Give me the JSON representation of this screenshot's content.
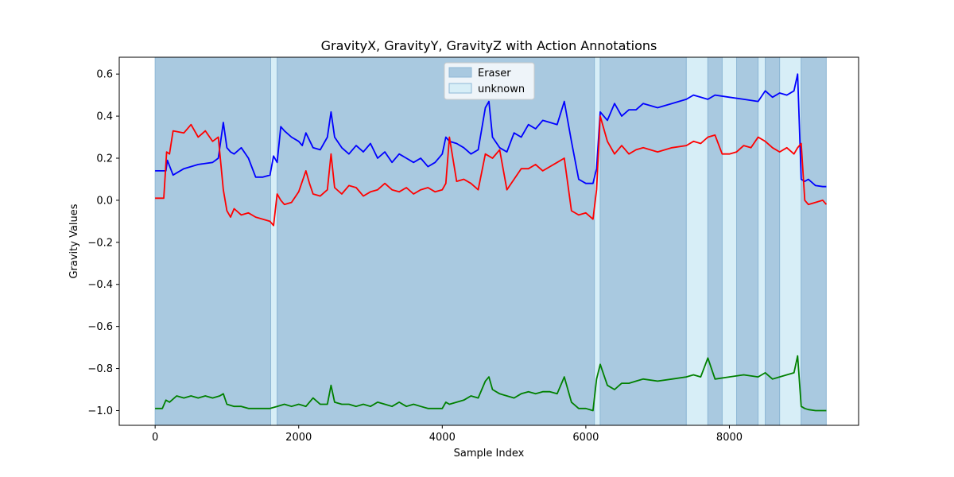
{
  "chart_data": {
    "type": "line",
    "title": "GravityX, GravityY, GravityZ with Action Annotations",
    "xlabel": "Sample Index",
    "ylabel": "Gravity Values",
    "xlim": [
      -500,
      9800
    ],
    "ylim": [
      -1.07,
      0.68
    ],
    "xticks": [
      0,
      2000,
      4000,
      6000,
      8000
    ],
    "yticks": [
      0.6,
      0.4,
      0.2,
      0.0,
      -0.2,
      -0.4,
      -0.6,
      -0.8,
      -1.0
    ],
    "xtick_labels": [
      "0",
      "2000",
      "4000",
      "6000",
      "8000"
    ],
    "ytick_labels": [
      "0.6",
      "0.4",
      "0.2",
      "0.0",
      "−0.2",
      "−0.4",
      "−0.6",
      "−0.8",
      "−1.0"
    ],
    "legend": {
      "placement": "upper center",
      "entries": [
        {
          "label": "Eraser",
          "color": "#a9c9e0"
        },
        {
          "label": "unknown",
          "color": "#d7eef7"
        }
      ]
    },
    "annotations": [
      {
        "label": "Eraser",
        "start": 0,
        "end": 1610
      },
      {
        "label": "unknown",
        "start": 1610,
        "end": 1700
      },
      {
        "label": "Eraser",
        "start": 1700,
        "end": 6120
      },
      {
        "label": "unknown",
        "start": 6120,
        "end": 6200
      },
      {
        "label": "Eraser",
        "start": 6200,
        "end": 7400
      },
      {
        "label": "unknown",
        "start": 7400,
        "end": 7700
      },
      {
        "label": "Eraser",
        "start": 7700,
        "end": 7900
      },
      {
        "label": "unknown",
        "start": 7900,
        "end": 8100
      },
      {
        "label": "Eraser",
        "start": 8100,
        "end": 8400
      },
      {
        "label": "unknown",
        "start": 8400,
        "end": 8500
      },
      {
        "label": "Eraser",
        "start": 8500,
        "end": 8700
      },
      {
        "label": "unknown",
        "start": 8700,
        "end": 9000
      },
      {
        "label": "Eraser",
        "start": 9000,
        "end": 9350
      }
    ],
    "series": [
      {
        "color": "#0000ff",
        "x": [
          0,
          150,
          170,
          250,
          400,
          600,
          800,
          880,
          950,
          1000,
          1050,
          1100,
          1200,
          1300,
          1400,
          1500,
          1600,
          1650,
          1700,
          1750,
          1800,
          1900,
          2000,
          2050,
          2100,
          2200,
          2300,
          2400,
          2450,
          2500,
          2600,
          2700,
          2800,
          2900,
          3000,
          3100,
          3200,
          3300,
          3400,
          3500,
          3600,
          3700,
          3800,
          3900,
          4000,
          4050,
          4100,
          4200,
          4300,
          4400,
          4500,
          4600,
          4650,
          4700,
          4800,
          4900,
          5000,
          5100,
          5200,
          5300,
          5400,
          5500,
          5600,
          5700,
          5800,
          5900,
          6000,
          6100,
          6150,
          6200,
          6300,
          6400,
          6500,
          6600,
          6700,
          6800,
          7000,
          7200,
          7400,
          7500,
          7600,
          7700,
          7800,
          8000,
          8200,
          8400,
          8500,
          8600,
          8700,
          8800,
          8900,
          8950,
          9000,
          9050,
          9100,
          9200,
          9300,
          9350
        ],
        "values": [
          0.14,
          0.14,
          0.19,
          0.12,
          0.15,
          0.17,
          0.18,
          0.2,
          0.37,
          0.25,
          0.23,
          0.22,
          0.25,
          0.2,
          0.11,
          0.11,
          0.12,
          0.21,
          0.18,
          0.35,
          0.33,
          0.3,
          0.28,
          0.26,
          0.32,
          0.25,
          0.24,
          0.3,
          0.42,
          0.3,
          0.25,
          0.22,
          0.26,
          0.23,
          0.27,
          0.2,
          0.23,
          0.18,
          0.22,
          0.2,
          0.18,
          0.2,
          0.16,
          0.18,
          0.22,
          0.3,
          0.28,
          0.27,
          0.25,
          0.22,
          0.24,
          0.44,
          0.47,
          0.3,
          0.25,
          0.23,
          0.32,
          0.3,
          0.36,
          0.34,
          0.38,
          0.37,
          0.36,
          0.47,
          0.28,
          0.1,
          0.08,
          0.08,
          0.15,
          0.42,
          0.38,
          0.46,
          0.4,
          0.43,
          0.43,
          0.46,
          0.44,
          0.46,
          0.48,
          0.5,
          0.49,
          0.48,
          0.5,
          0.49,
          0.48,
          0.47,
          0.52,
          0.49,
          0.51,
          0.5,
          0.52,
          0.6,
          0.1,
          0.09,
          0.1,
          0.07,
          0.065,
          0.065
        ]
      },
      {
        "color": "#ff0000",
        "x": [
          0,
          120,
          160,
          200,
          250,
          400,
          500,
          600,
          700,
          800,
          880,
          950,
          1000,
          1050,
          1100,
          1200,
          1300,
          1400,
          1500,
          1600,
          1650,
          1700,
          1750,
          1800,
          1900,
          2000,
          2100,
          2150,
          2200,
          2300,
          2400,
          2450,
          2500,
          2600,
          2700,
          2800,
          2900,
          3000,
          3100,
          3200,
          3300,
          3400,
          3500,
          3600,
          3700,
          3800,
          3900,
          4000,
          4050,
          4100,
          4200,
          4300,
          4400,
          4500,
          4600,
          4700,
          4800,
          4900,
          5000,
          5100,
          5200,
          5300,
          5400,
          5500,
          5600,
          5700,
          5800,
          5900,
          6000,
          6100,
          6150,
          6200,
          6300,
          6400,
          6500,
          6600,
          6700,
          6800,
          7000,
          7200,
          7400,
          7500,
          7600,
          7700,
          7800,
          7900,
          8000,
          8100,
          8200,
          8300,
          8400,
          8500,
          8600,
          8700,
          8800,
          8900,
          8950,
          9000,
          9050,
          9100,
          9200,
          9300,
          9350
        ],
        "values": [
          0.01,
          0.01,
          0.23,
          0.22,
          0.33,
          0.32,
          0.36,
          0.3,
          0.33,
          0.28,
          0.3,
          0.05,
          -0.05,
          -0.08,
          -0.04,
          -0.07,
          -0.06,
          -0.08,
          -0.09,
          -0.1,
          -0.12,
          0.03,
          0.0,
          -0.02,
          -0.01,
          0.04,
          0.14,
          0.08,
          0.03,
          0.02,
          0.05,
          0.22,
          0.06,
          0.03,
          0.07,
          0.06,
          0.02,
          0.04,
          0.05,
          0.08,
          0.05,
          0.04,
          0.06,
          0.03,
          0.05,
          0.06,
          0.04,
          0.05,
          0.08,
          0.3,
          0.09,
          0.1,
          0.08,
          0.05,
          0.22,
          0.2,
          0.24,
          0.05,
          0.1,
          0.15,
          0.15,
          0.17,
          0.14,
          0.16,
          0.18,
          0.2,
          -0.05,
          -0.07,
          -0.06,
          -0.09,
          0.05,
          0.4,
          0.28,
          0.22,
          0.26,
          0.22,
          0.24,
          0.25,
          0.23,
          0.25,
          0.26,
          0.28,
          0.27,
          0.3,
          0.31,
          0.22,
          0.22,
          0.23,
          0.26,
          0.25,
          0.3,
          0.28,
          0.25,
          0.23,
          0.25,
          0.22,
          0.25,
          0.27,
          0.0,
          -0.02,
          -0.01,
          0.0,
          -0.02
        ]
      },
      {
        "color": "#008000",
        "x": [
          0,
          100,
          150,
          200,
          300,
          400,
          500,
          600,
          700,
          800,
          900,
          950,
          1000,
          1100,
          1200,
          1300,
          1400,
          1500,
          1600,
          1700,
          1800,
          1900,
          2000,
          2100,
          2200,
          2300,
          2400,
          2450,
          2500,
          2600,
          2700,
          2800,
          2900,
          3000,
          3100,
          3200,
          3300,
          3400,
          3500,
          3600,
          3700,
          3800,
          3900,
          4000,
          4050,
          4100,
          4200,
          4300,
          4400,
          4500,
          4600,
          4650,
          4700,
          4800,
          4900,
          5000,
          5100,
          5200,
          5300,
          5400,
          5500,
          5600,
          5700,
          5800,
          5900,
          6000,
          6100,
          6150,
          6200,
          6300,
          6400,
          6500,
          6600,
          6700,
          6800,
          7000,
          7200,
          7400,
          7500,
          7600,
          7700,
          7800,
          8000,
          8200,
          8400,
          8500,
          8600,
          8700,
          8800,
          8900,
          8950,
          9000,
          9050,
          9100,
          9200,
          9300,
          9350
        ],
        "values": [
          -0.99,
          -0.99,
          -0.95,
          -0.96,
          -0.93,
          -0.94,
          -0.93,
          -0.94,
          -0.93,
          -0.94,
          -0.93,
          -0.92,
          -0.97,
          -0.98,
          -0.98,
          -0.99,
          -0.99,
          -0.99,
          -0.99,
          -0.98,
          -0.97,
          -0.98,
          -0.97,
          -0.98,
          -0.94,
          -0.97,
          -0.97,
          -0.88,
          -0.96,
          -0.97,
          -0.97,
          -0.98,
          -0.97,
          -0.98,
          -0.96,
          -0.97,
          -0.98,
          -0.96,
          -0.98,
          -0.97,
          -0.98,
          -0.99,
          -0.99,
          -0.99,
          -0.96,
          -0.97,
          -0.96,
          -0.95,
          -0.93,
          -0.94,
          -0.86,
          -0.84,
          -0.9,
          -0.92,
          -0.93,
          -0.94,
          -0.92,
          -0.91,
          -0.92,
          -0.91,
          -0.91,
          -0.92,
          -0.84,
          -0.96,
          -0.99,
          -0.99,
          -1.0,
          -0.85,
          -0.78,
          -0.88,
          -0.9,
          -0.87,
          -0.87,
          -0.86,
          -0.85,
          -0.86,
          -0.85,
          -0.84,
          -0.83,
          -0.84,
          -0.75,
          -0.85,
          -0.84,
          -0.83,
          -0.84,
          -0.82,
          -0.85,
          -0.84,
          -0.83,
          -0.82,
          -0.74,
          -0.98,
          -0.99,
          -0.995,
          -1.0,
          -1.0,
          -1.0
        ]
      }
    ]
  }
}
